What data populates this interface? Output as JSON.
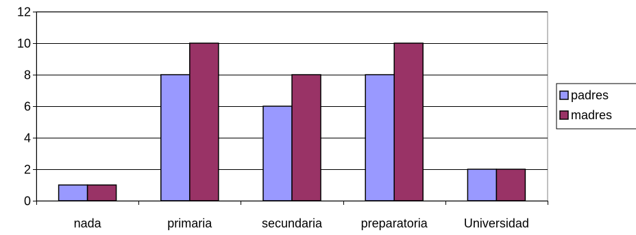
{
  "chart_data": {
    "type": "bar",
    "title": "",
    "xlabel": "",
    "ylabel": "",
    "categories": [
      "nada",
      "primaria",
      "secundaria",
      "preparatoria",
      "Universidad"
    ],
    "series": [
      {
        "name": "padres",
        "values": [
          1,
          8,
          6,
          8,
          2
        ],
        "color": "#9999ff"
      },
      {
        "name": "madres",
        "values": [
          1,
          10,
          8,
          10,
          2
        ],
        "color": "#993366"
      }
    ],
    "ylim": [
      0,
      12
    ],
    "yticks": [
      0,
      2,
      4,
      6,
      8,
      10,
      12
    ],
    "grid": true,
    "legend_position": "right"
  }
}
